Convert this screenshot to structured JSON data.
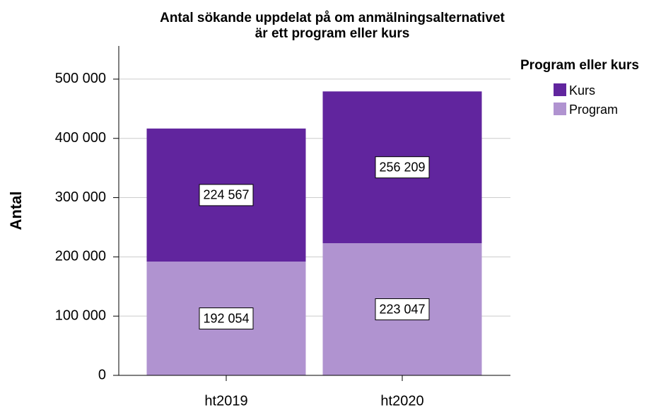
{
  "chart_data": {
    "type": "stacked_bar",
    "title": [
      "Antal sökande uppdelat på om anmälningsalternativet",
      "är ett program eller kurs"
    ],
    "y_label": "Antal",
    "legend_title": "Program eller kurs",
    "categories": [
      "ht2019",
      "ht2020"
    ],
    "series": [
      {
        "name": "Program",
        "color": "#b093d0",
        "values": [
          192054,
          223047
        ],
        "value_labels": [
          "192 054",
          "223 047"
        ]
      },
      {
        "name": "Kurs",
        "color": "#61259e",
        "values": [
          224567,
          256209
        ],
        "value_labels": [
          "224 567",
          "256 209"
        ]
      }
    ],
    "ylim": [
      0,
      556000
    ],
    "yticks": [
      0,
      {
        "value": 100000,
        "label": "100 000"
      },
      {
        "value": 200000,
        "label": "200 000"
      },
      {
        "value": 300000,
        "label": "300 000"
      },
      {
        "value": 400000,
        "label": "400 000"
      },
      {
        "value": 500000,
        "label": "500 000"
      }
    ],
    "grid": true,
    "legend": "right"
  }
}
